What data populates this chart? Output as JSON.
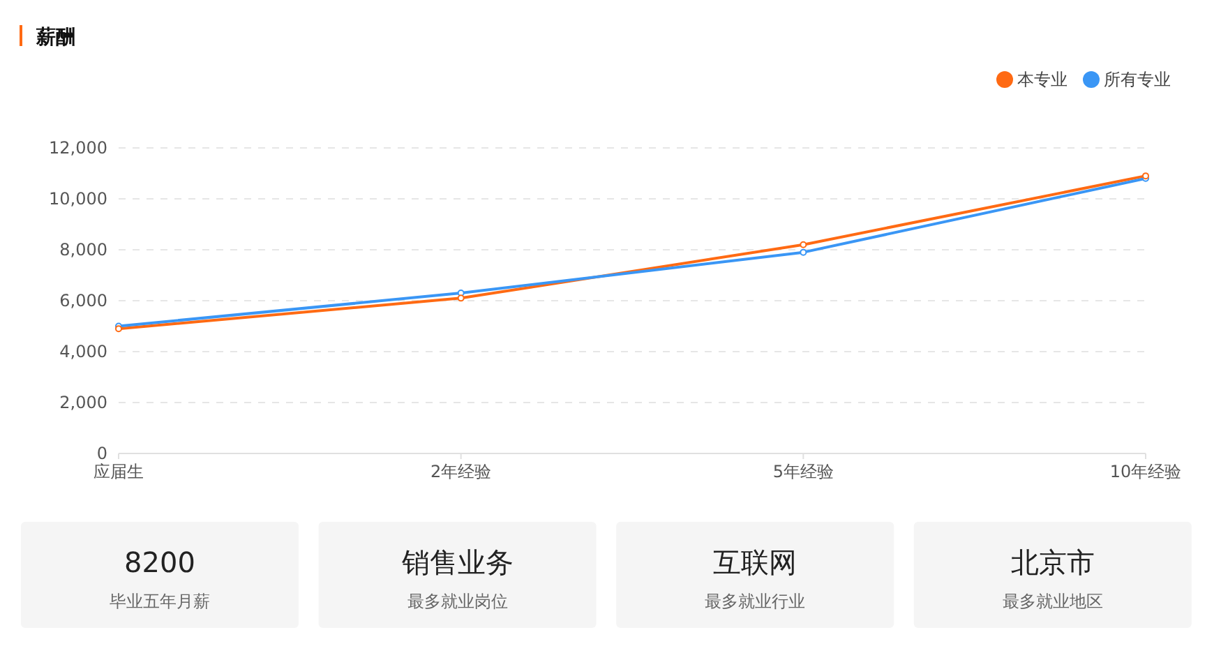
{
  "chart_data": [
    {
      "type": "line",
      "title": "薪酬",
      "categories": [
        "应届生",
        "2年经验",
        "5年经验",
        "10年经验"
      ],
      "series": [
        {
          "name": "本专业",
          "color": "#ff6a13",
          "values": [
            4900,
            6100,
            8200,
            10900
          ]
        },
        {
          "name": "所有专业",
          "color": "#3a96f5",
          "values": [
            5000,
            6300,
            7900,
            10800
          ]
        }
      ],
      "ylim": [
        0,
        12000
      ],
      "yticks": [
        {
          "value": 0,
          "label": "0"
        },
        {
          "value": 2000,
          "label": "2,000"
        },
        {
          "value": 4000,
          "label": "4,000"
        },
        {
          "value": 6000,
          "label": "6,000"
        },
        {
          "value": 8000,
          "label": "8,000"
        },
        {
          "value": 10000,
          "label": "10,000"
        },
        {
          "value": 12000,
          "label": "12,000"
        }
      ],
      "grid": "y",
      "legend": "top right",
      "marker": "circle",
      "line_style": "solid"
    },
    {
      "type": "other",
      "annotations": [
        "8200",
        "毕业五年月薪",
        "销售业务",
        "最多就业岗位",
        "互联网",
        "最多就业行业",
        "北京市",
        "最多就业地区"
      ]
    }
  ]
}
